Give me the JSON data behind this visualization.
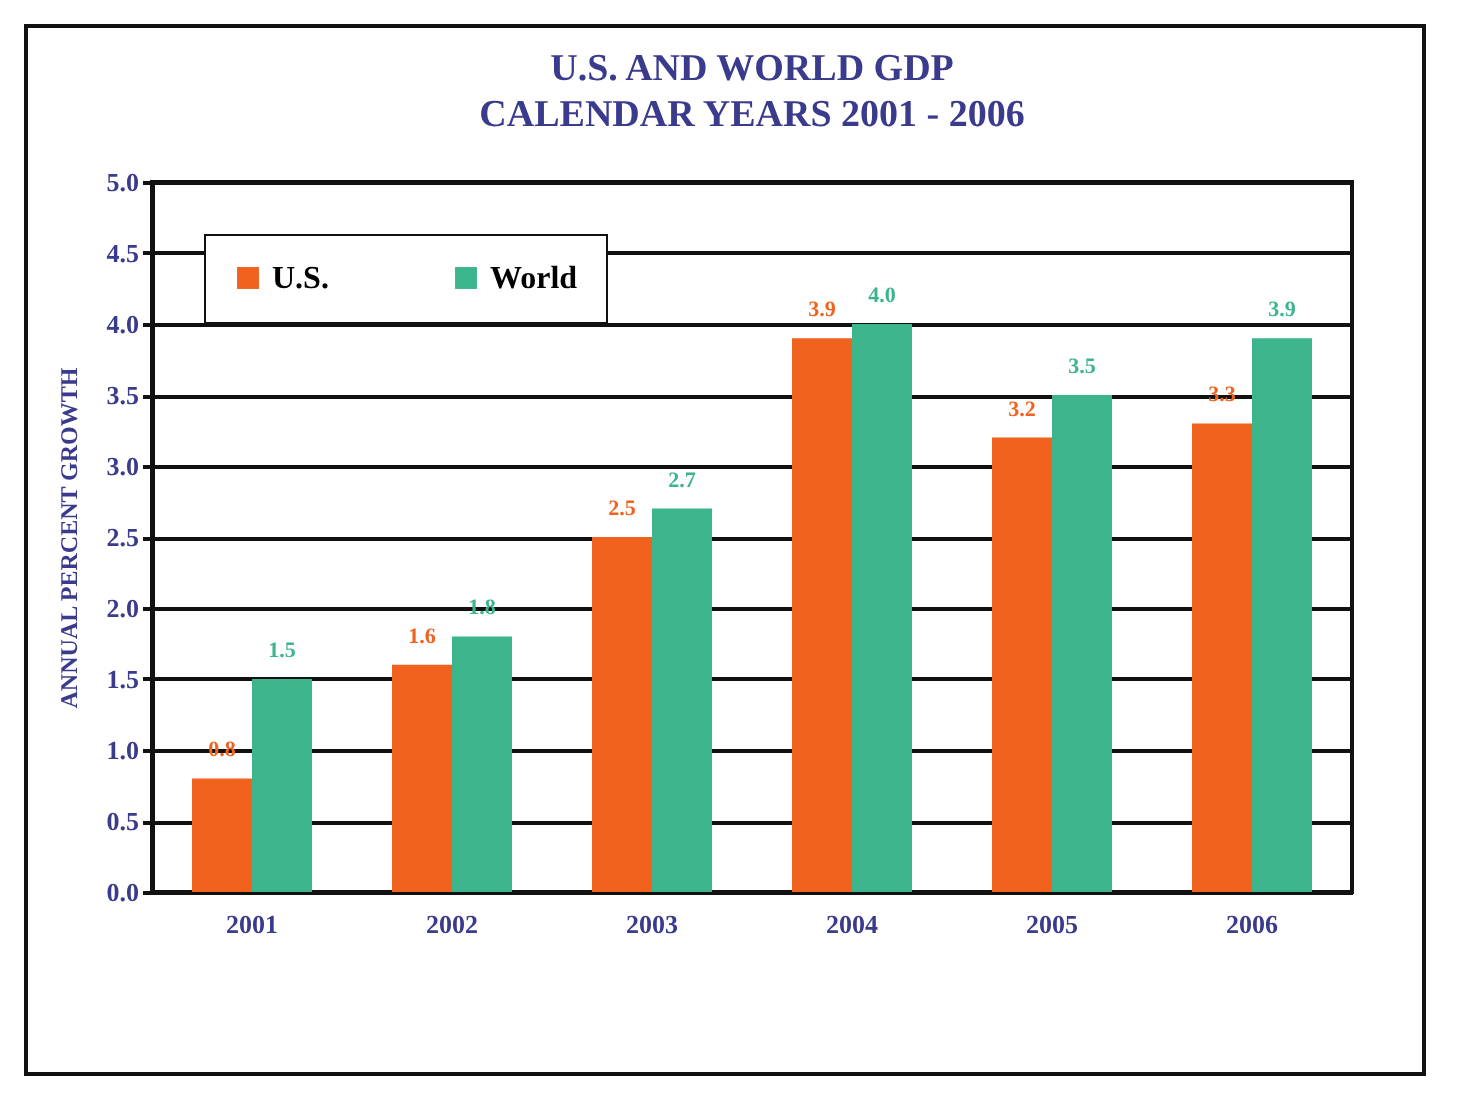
{
  "chart_data": {
    "type": "bar",
    "title": "U.S. AND WORLD GDP",
    "subtitle": "CALENDAR YEARS 2001 - 2006",
    "ylabel": "ANNUAL PERCENT GROWTH",
    "categories": [
      "2001",
      "2002",
      "2003",
      "2004",
      "2005",
      "2006"
    ],
    "series": [
      {
        "name": "U.S.",
        "color": "#f0621e",
        "values": [
          0.8,
          1.6,
          2.5,
          3.9,
          3.2,
          3.3
        ],
        "value_labels": [
          "0.8",
          "1.6",
          "2.5",
          "3.9",
          "3.2",
          "3.3"
        ]
      },
      {
        "name": "World",
        "color": "#3cb48c",
        "values": [
          1.5,
          1.8,
          2.7,
          4.0,
          3.5,
          3.9
        ],
        "value_labels": [
          "1.5",
          "1.8",
          "2.7",
          "4.0",
          "3.5",
          "3.9"
        ]
      }
    ],
    "ylim": [
      0,
      5
    ],
    "yticks": [
      {
        "value": 0,
        "label": "0.0"
      },
      0.5,
      {
        "value": 1,
        "label": "1.0"
      },
      1.5,
      {
        "value": 2,
        "label": "2.0"
      },
      2.5,
      {
        "value": 3,
        "label": "3.0"
      },
      3.5,
      {
        "value": 4,
        "label": "4.0"
      },
      4.5,
      {
        "value": 5,
        "label": "5.0"
      }
    ],
    "grid": "y",
    "legend": "top left"
  }
}
